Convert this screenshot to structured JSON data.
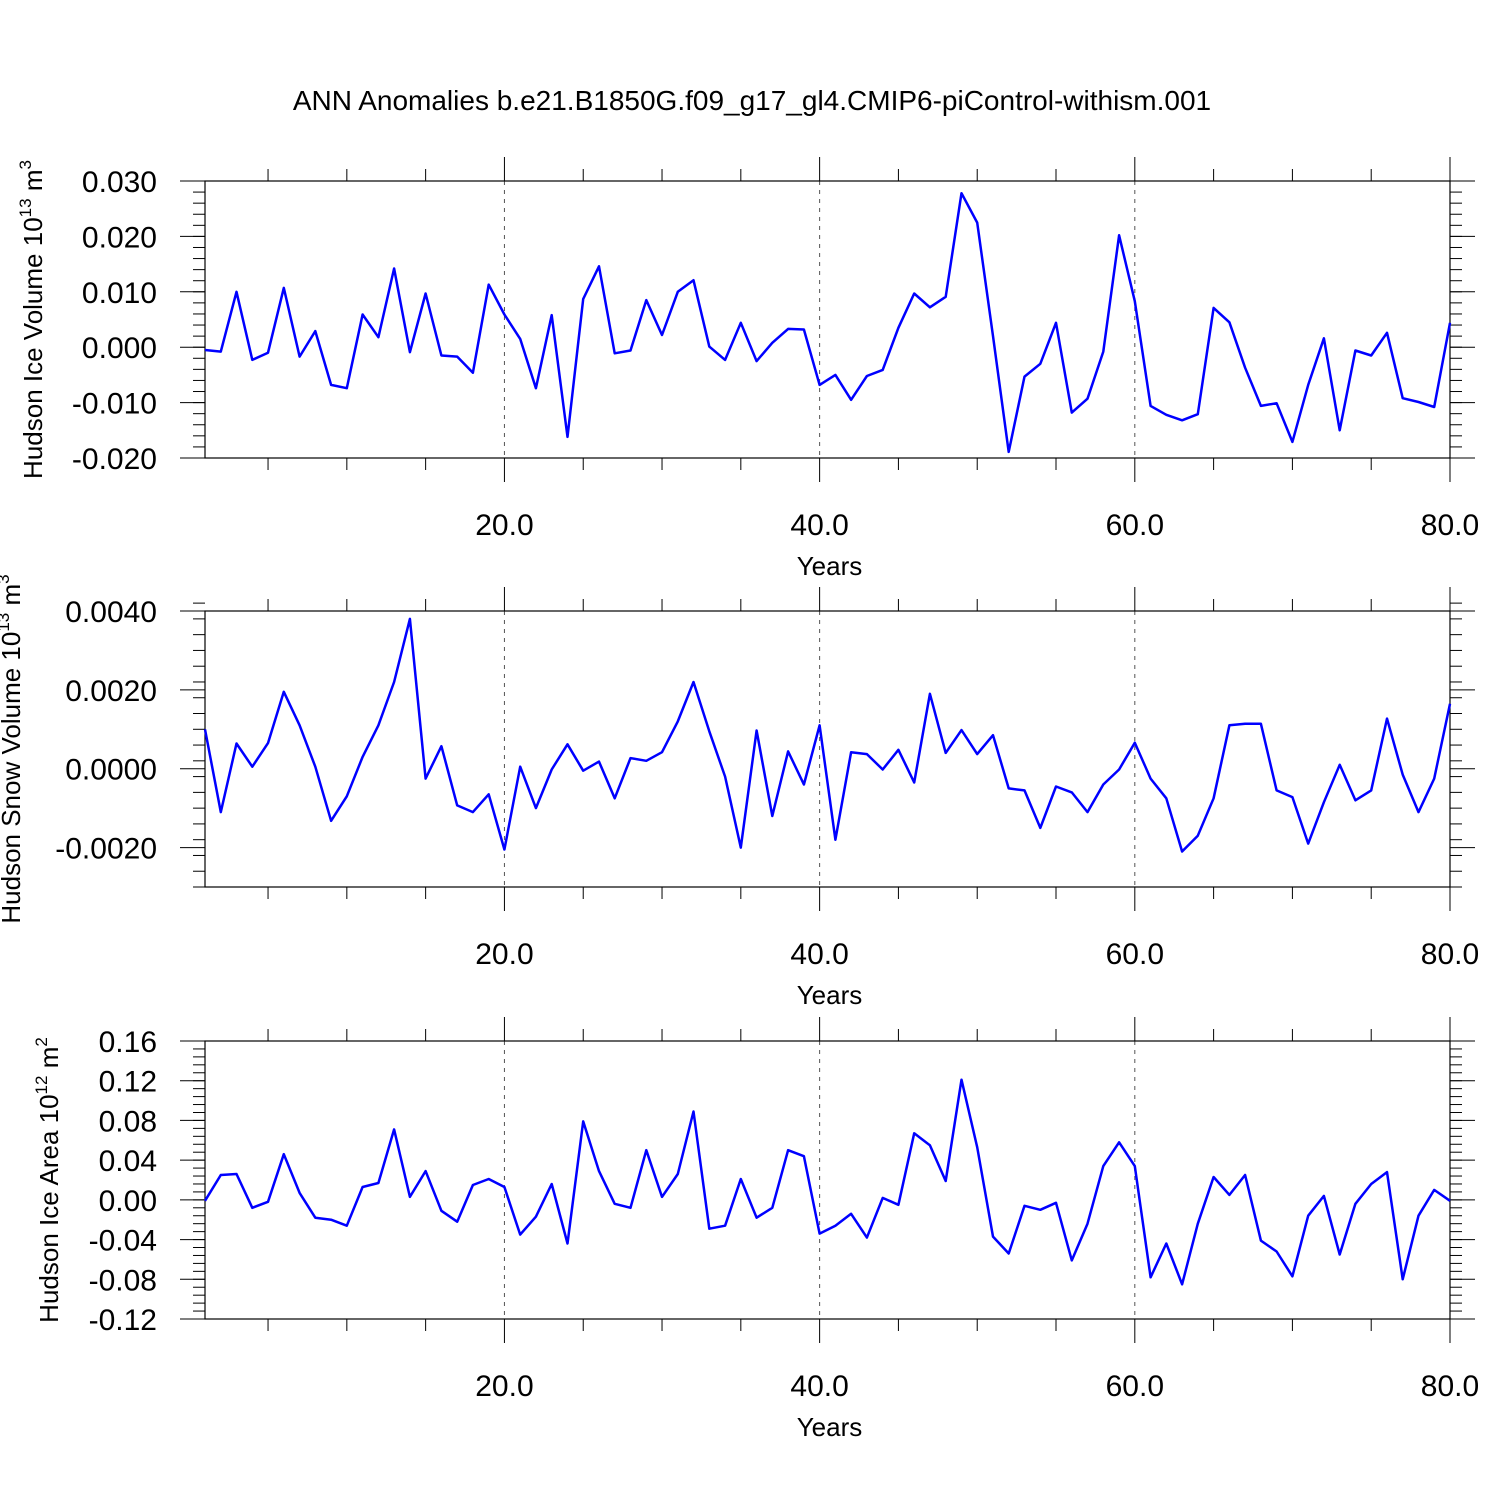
{
  "figure": {
    "title": "ANN Anomalies b.e21.B1850G.f09_g17_gl4.CMIP6-piControl-withism.001"
  },
  "colors": {
    "line": "#0000ff",
    "axis": "#000000",
    "grid": "#555555"
  },
  "chart_data": [
    {
      "type": "line",
      "ylabel": "Hudson Ice Volume 10",
      "ylabel_exp": "13",
      "ylabel_unit": "m",
      "ylabel_unit_exp": "3",
      "xlabel": "Years",
      "xlim": [
        1,
        80
      ],
      "ylim": [
        -0.02,
        0.03
      ],
      "xticks": [
        20,
        40,
        60,
        80
      ],
      "xtick_labels": [
        "20.0",
        "40.0",
        "60.0",
        "80.0"
      ],
      "yticks": [
        -0.02,
        -0.01,
        0.0,
        0.01,
        0.02,
        0.03
      ],
      "ytick_labels": [
        "-0.020",
        "-0.010",
        "0.000",
        "0.010",
        "0.020",
        "0.030"
      ],
      "y_minor_step": 0.002,
      "grid": "vertical dashed at major x ticks",
      "series": [
        {
          "x_start": 1,
          "values": [
            -0.0005,
            -0.0008,
            0.01,
            -0.0023,
            -0.001,
            0.0107,
            -0.0017,
            0.0029,
            -0.0068,
            -0.0074,
            0.0059,
            0.0018,
            0.0142,
            -0.0009,
            0.0097,
            -0.0015,
            -0.0017,
            -0.0046,
            0.0113,
            0.0059,
            0.0015,
            -0.0074,
            0.0058,
            -0.0162,
            0.0087,
            0.0146,
            -0.0011,
            -0.0006,
            0.0085,
            0.0022,
            0.01,
            0.0121,
            0.0001,
            -0.0023,
            0.0044,
            -0.0025,
            0.0008,
            0.0033,
            0.0032,
            -0.0068,
            -0.005,
            -0.0095,
            -0.0052,
            -0.0041,
            0.0035,
            0.0097,
            0.0072,
            0.0091,
            0.0278,
            0.0225,
            0.002,
            -0.0189,
            -0.0053,
            -0.003,
            0.0044,
            -0.0118,
            -0.0093,
            -0.0008,
            0.0202,
            0.0083,
            -0.0106,
            -0.0122,
            -0.0132,
            -0.0121,
            0.0071,
            0.0045,
            -0.0037,
            -0.0106,
            -0.0101,
            -0.0171,
            -0.0068,
            0.0016,
            -0.015,
            -0.0006,
            -0.0015,
            0.0026,
            -0.0092,
            -0.0099,
            -0.0108,
            0.0044
          ]
        }
      ]
    },
    {
      "type": "line",
      "ylabel": "Hudson Snow Volume 10",
      "ylabel_exp": "13",
      "ylabel_unit": "m",
      "ylabel_unit_exp": "3",
      "xlabel": "Years",
      "xlim": [
        1,
        80
      ],
      "ylim": [
        -0.003,
        0.004
      ],
      "xticks": [
        20,
        40,
        60,
        80
      ],
      "xtick_labels": [
        "20.0",
        "40.0",
        "60.0",
        "80.0"
      ],
      "yticks": [
        -0.002,
        0.0,
        0.002,
        0.004
      ],
      "ytick_labels": [
        "-0.0020",
        "0.0000",
        "0.0020",
        "0.0040"
      ],
      "y_minor_step": 0.0004,
      "grid": "vertical dashed at major x ticks",
      "series": [
        {
          "x_start": 1,
          "values": [
            0.001,
            -0.0011,
            0.00064,
            5e-05,
            0.00065,
            0.00195,
            0.0011,
            5e-05,
            -0.00132,
            -0.0007,
            0.0003,
            0.0011,
            0.0022,
            0.0038,
            -0.00025,
            0.00057,
            -0.00093,
            -0.0011,
            -0.00065,
            -0.00205,
            5e-05,
            -0.001,
            -2e-05,
            0.00062,
            -5e-05,
            0.00018,
            -0.00075,
            0.00027,
            0.0002,
            0.00042,
            0.0012,
            0.0022,
            0.00095,
            -0.0002,
            -0.002,
            0.00097,
            -0.0012,
            0.00044,
            -0.0004,
            0.0011,
            -0.0018,
            0.00042,
            0.00037,
            -2e-05,
            0.00048,
            -0.00035,
            0.0019,
            0.0004,
            0.00098,
            0.00037,
            0.00085,
            -0.0005,
            -0.00055,
            -0.0015,
            -0.00045,
            -0.0006,
            -0.0011,
            -0.0004,
            -2e-05,
            0.00066,
            -0.00025,
            -0.00075,
            -0.0021,
            -0.0017,
            -0.00075,
            0.0011,
            0.00114,
            0.00114,
            -0.00055,
            -0.00072,
            -0.0019,
            -0.00085,
            0.0001,
            -0.0008,
            -0.00055,
            0.00127,
            -0.00015,
            -0.0011,
            -0.00025,
            0.00165
          ]
        }
      ]
    },
    {
      "type": "line",
      "ylabel": "Hudson Ice Area 10",
      "ylabel_exp": "12",
      "ylabel_unit": "m",
      "ylabel_unit_exp": "2",
      "xlabel": "Years",
      "xlim": [
        1,
        80
      ],
      "ylim": [
        -0.12,
        0.16
      ],
      "xticks": [
        20,
        40,
        60,
        80
      ],
      "xtick_labels": [
        "20.0",
        "40.0",
        "60.0",
        "80.0"
      ],
      "yticks": [
        -0.12,
        -0.08,
        -0.04,
        0.0,
        0.04,
        0.08,
        0.12,
        0.16
      ],
      "ytick_labels": [
        "-0.12",
        "-0.08",
        "-0.04",
        "0.00",
        "0.04",
        "0.08",
        "0.12",
        "0.16"
      ],
      "y_minor_step": 0.008,
      "grid": "vertical dashed at major x ticks",
      "series": [
        {
          "x_start": 1,
          "values": [
            -0.001,
            0.025,
            0.026,
            -0.008,
            -0.002,
            0.046,
            0.007,
            -0.018,
            -0.02,
            -0.026,
            0.013,
            0.017,
            0.071,
            0.003,
            0.029,
            -0.011,
            -0.022,
            0.015,
            0.021,
            0.013,
            -0.035,
            -0.017,
            0.016,
            -0.044,
            0.079,
            0.029,
            -0.004,
            -0.008,
            0.05,
            0.003,
            0.026,
            0.089,
            -0.029,
            -0.026,
            0.021,
            -0.018,
            -0.008,
            0.05,
            0.044,
            -0.034,
            -0.026,
            -0.014,
            -0.038,
            0.002,
            -0.005,
            0.067,
            0.055,
            0.019,
            0.121,
            0.053,
            -0.037,
            -0.054,
            -0.006,
            -0.01,
            -0.003,
            -0.061,
            -0.024,
            0.034,
            0.058,
            0.034,
            -0.078,
            -0.044,
            -0.085,
            -0.024,
            0.023,
            0.005,
            0.025,
            -0.041,
            -0.052,
            -0.077,
            -0.016,
            0.004,
            -0.055,
            -0.004,
            0.016,
            0.028,
            -0.08,
            -0.016,
            0.01,
            -0.001
          ]
        }
      ]
    }
  ]
}
